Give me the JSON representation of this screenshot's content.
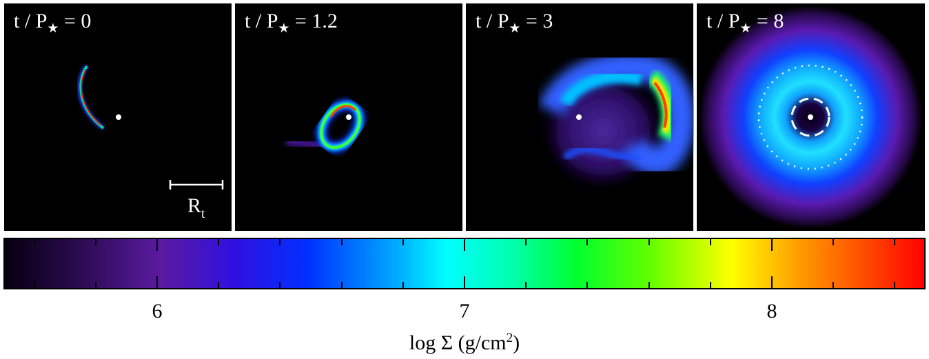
{
  "panels": [
    {
      "t": "t",
      "P": "P",
      "star": "★",
      "rest": " = 0"
    },
    {
      "t": "t",
      "P": "P",
      "star": "★",
      "rest": " = 1.2"
    },
    {
      "t": "t",
      "P": "P",
      "star": "★",
      "rest": " = 3"
    },
    {
      "t": "t",
      "P": "P",
      "star": "★",
      "rest": " = 8"
    }
  ],
  "scale_bar": {
    "label": "R",
    "subscript": "t"
  },
  "colorbar": {
    "tick_labels": [
      "6",
      "7",
      "8"
    ],
    "label_main": "log Σ  (g/cm",
    "label_sup": "2",
    "label_end": ")",
    "range": [
      5.5,
      8.5
    ],
    "colors": [
      "#0a0012",
      "#4a1290",
      "#0020ff",
      "#00ffff",
      "#00ff40",
      "#ffff00",
      "#ff6000",
      "#ff0000"
    ]
  }
}
